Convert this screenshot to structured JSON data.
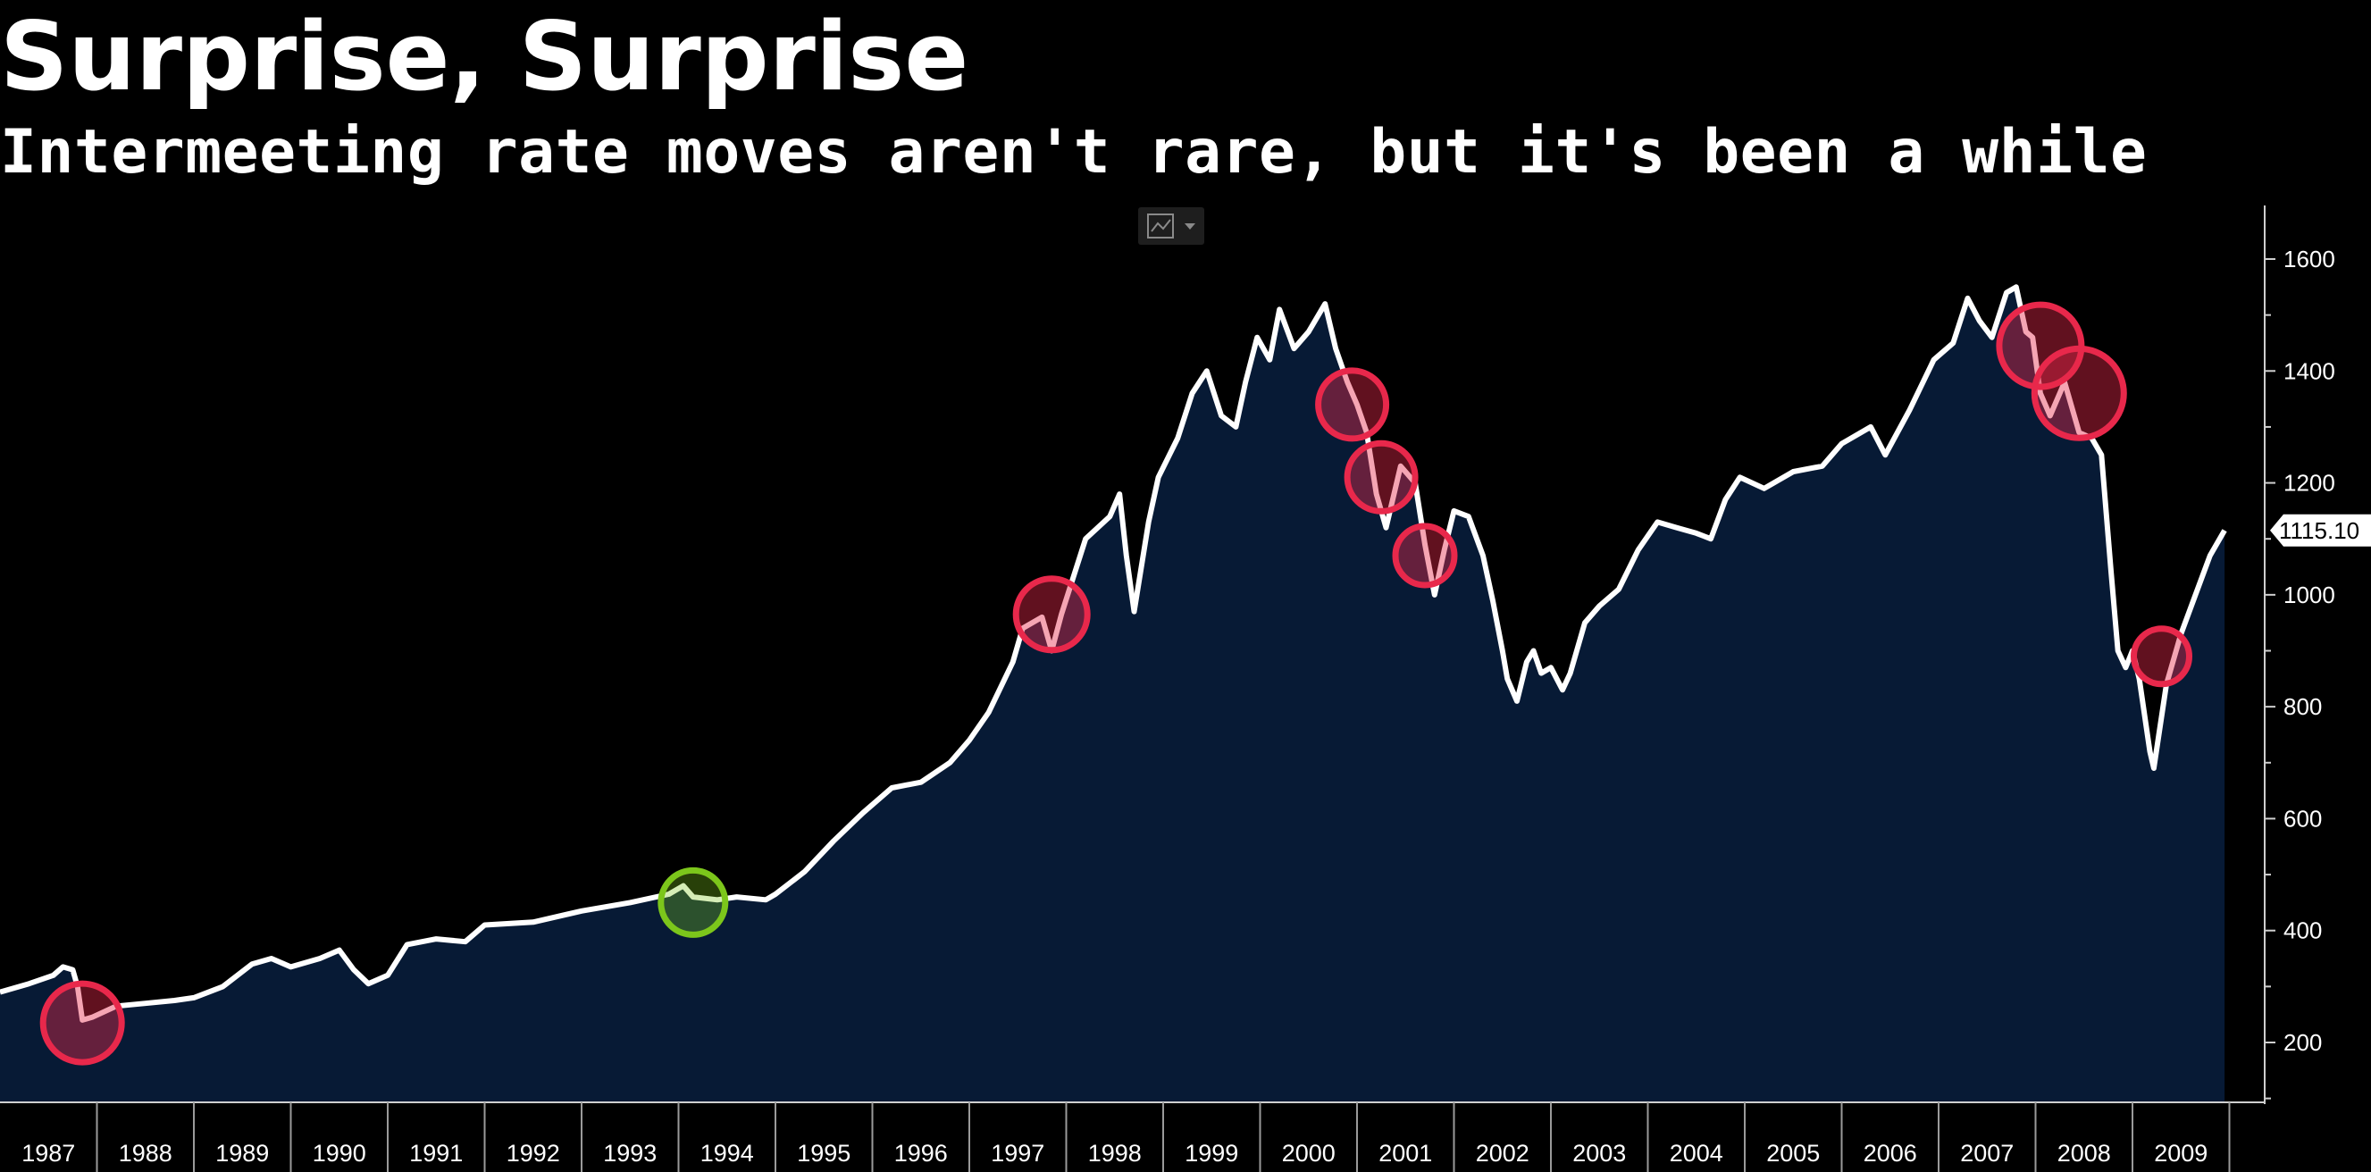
{
  "chart_data": {
    "type": "area",
    "title": "Surprise, Surprise",
    "subtitle": "Intermeeting rate moves aren't rare, but it's been a while",
    "xlim": [
      1987.0,
      2009.95
    ],
    "ylim": [
      100,
      1650
    ],
    "x_tick_labels": [
      "1987",
      "1988",
      "1989",
      "1990",
      "1991",
      "1992",
      "1993",
      "1994",
      "1995",
      "1996",
      "1997",
      "1998",
      "1999",
      "2000",
      "2001",
      "2002",
      "2003",
      "2004",
      "2005",
      "2006",
      "2007",
      "2008",
      "2009"
    ],
    "y_ticks": [
      200,
      400,
      600,
      800,
      1000,
      1200,
      1400,
      1600
    ],
    "last_value": 1115.1,
    "last_value_label": "1115.10",
    "series": [
      {
        "values": [
          [
            1987.0,
            290
          ],
          [
            1987.3,
            305
          ],
          [
            1987.55,
            320
          ],
          [
            1987.65,
            335
          ],
          [
            1987.75,
            330
          ],
          [
            1987.8,
            300
          ],
          [
            1987.85,
            240
          ],
          [
            1987.95,
            245
          ],
          [
            1988.2,
            265
          ],
          [
            1988.5,
            270
          ],
          [
            1988.8,
            275
          ],
          [
            1989.0,
            280
          ],
          [
            1989.3,
            300
          ],
          [
            1989.6,
            340
          ],
          [
            1989.8,
            350
          ],
          [
            1990.0,
            335
          ],
          [
            1990.3,
            350
          ],
          [
            1990.5,
            365
          ],
          [
            1990.65,
            330
          ],
          [
            1990.8,
            305
          ],
          [
            1991.0,
            320
          ],
          [
            1991.2,
            375
          ],
          [
            1991.5,
            385
          ],
          [
            1991.8,
            380
          ],
          [
            1992.0,
            410
          ],
          [
            1992.5,
            415
          ],
          [
            1993.0,
            435
          ],
          [
            1993.5,
            450
          ],
          [
            1993.9,
            465
          ],
          [
            1994.05,
            480
          ],
          [
            1994.15,
            460
          ],
          [
            1994.4,
            455
          ],
          [
            1994.6,
            460
          ],
          [
            1994.9,
            455
          ],
          [
            1995.0,
            465
          ],
          [
            1995.3,
            505
          ],
          [
            1995.6,
            560
          ],
          [
            1995.9,
            610
          ],
          [
            1996.2,
            655
          ],
          [
            1996.5,
            665
          ],
          [
            1996.8,
            700
          ],
          [
            1997.0,
            740
          ],
          [
            1997.2,
            790
          ],
          [
            1997.45,
            880
          ],
          [
            1997.55,
            940
          ],
          [
            1997.75,
            960
          ],
          [
            1997.85,
            900
          ],
          [
            1997.95,
            965
          ],
          [
            1998.2,
            1100
          ],
          [
            1998.45,
            1140
          ],
          [
            1998.55,
            1180
          ],
          [
            1998.62,
            1070
          ],
          [
            1998.7,
            970
          ],
          [
            1998.85,
            1130
          ],
          [
            1998.95,
            1210
          ],
          [
            1999.15,
            1280
          ],
          [
            1999.3,
            1360
          ],
          [
            1999.45,
            1400
          ],
          [
            1999.6,
            1320
          ],
          [
            1999.75,
            1300
          ],
          [
            1999.85,
            1380
          ],
          [
            1999.97,
            1460
          ],
          [
            2000.1,
            1420
          ],
          [
            2000.2,
            1510
          ],
          [
            2000.35,
            1440
          ],
          [
            2000.5,
            1470
          ],
          [
            2000.67,
            1520
          ],
          [
            2000.78,
            1440
          ],
          [
            2000.9,
            1380
          ],
          [
            2001.0,
            1340
          ],
          [
            2001.1,
            1290
          ],
          [
            2001.2,
            1180
          ],
          [
            2001.3,
            1120
          ],
          [
            2001.45,
            1230
          ],
          [
            2001.6,
            1200
          ],
          [
            2001.7,
            1090
          ],
          [
            2001.8,
            1000
          ],
          [
            2001.9,
            1080
          ],
          [
            2002.0,
            1150
          ],
          [
            2002.15,
            1140
          ],
          [
            2002.3,
            1070
          ],
          [
            2002.4,
            990
          ],
          [
            2002.5,
            900
          ],
          [
            2002.55,
            850
          ],
          [
            2002.65,
            810
          ],
          [
            2002.75,
            880
          ],
          [
            2002.82,
            900
          ],
          [
            2002.9,
            860
          ],
          [
            2003.0,
            870
          ],
          [
            2003.12,
            830
          ],
          [
            2003.2,
            860
          ],
          [
            2003.35,
            950
          ],
          [
            2003.5,
            980
          ],
          [
            2003.7,
            1010
          ],
          [
            2003.9,
            1080
          ],
          [
            2004.1,
            1130
          ],
          [
            2004.3,
            1120
          ],
          [
            2004.5,
            1110
          ],
          [
            2004.65,
            1100
          ],
          [
            2004.8,
            1170
          ],
          [
            2004.95,
            1210
          ],
          [
            2005.2,
            1190
          ],
          [
            2005.5,
            1220
          ],
          [
            2005.8,
            1230
          ],
          [
            2006.0,
            1270
          ],
          [
            2006.3,
            1300
          ],
          [
            2006.45,
            1250
          ],
          [
            2006.7,
            1330
          ],
          [
            2006.95,
            1420
          ],
          [
            2007.15,
            1450
          ],
          [
            2007.3,
            1530
          ],
          [
            2007.42,
            1490
          ],
          [
            2007.55,
            1460
          ],
          [
            2007.7,
            1540
          ],
          [
            2007.8,
            1550
          ],
          [
            2007.9,
            1470
          ],
          [
            2007.97,
            1460
          ],
          [
            2008.05,
            1360
          ],
          [
            2008.15,
            1320
          ],
          [
            2008.3,
            1380
          ],
          [
            2008.45,
            1290
          ],
          [
            2008.58,
            1280
          ],
          [
            2008.68,
            1250
          ],
          [
            2008.78,
            1040
          ],
          [
            2008.85,
            900
          ],
          [
            2008.93,
            870
          ],
          [
            2009.0,
            900
          ],
          [
            2009.07,
            850
          ],
          [
            2009.18,
            720
          ],
          [
            2009.22,
            690
          ],
          [
            2009.35,
            840
          ],
          [
            2009.5,
            930
          ],
          [
            2009.65,
            1000
          ],
          [
            2009.8,
            1070
          ],
          [
            2009.95,
            1115.1
          ]
        ]
      }
    ],
    "annotations": [
      {
        "kind": "intermeeting_cut",
        "x": 1987.85,
        "y": 235,
        "color": "#e8284b"
      },
      {
        "kind": "intermeeting_hike",
        "x": 1994.15,
        "y": 450,
        "color": "#7cc61b"
      },
      {
        "kind": "intermeeting_cut",
        "x": 1997.85,
        "y": 965,
        "color": "#e8284b"
      },
      {
        "kind": "intermeeting_cut",
        "x": 2000.95,
        "y": 1340,
        "color": "#e8284b"
      },
      {
        "kind": "intermeeting_cut",
        "x": 2001.25,
        "y": 1210,
        "color": "#e8284b"
      },
      {
        "kind": "intermeeting_cut",
        "x": 2001.7,
        "y": 1070,
        "color": "#e8284b"
      },
      {
        "kind": "intermeeting_cut",
        "x": 2008.05,
        "y": 1445,
        "color": "#e8284b"
      },
      {
        "kind": "intermeeting_cut",
        "x": 2008.45,
        "y": 1360,
        "color": "#e8284b"
      },
      {
        "kind": "intermeeting_cut",
        "x": 2009.3,
        "y": 890,
        "color": "#e8284b"
      }
    ],
    "colors": {
      "background": "#000000",
      "area_fill": "#071a35",
      "line": "#ffffff",
      "axis": "#cfcfcf",
      "text": "#ffffff"
    }
  },
  "toolbar": {
    "chart_type_icon": "line-chart-icon",
    "dropdown_icon": "chevron-down-icon"
  }
}
